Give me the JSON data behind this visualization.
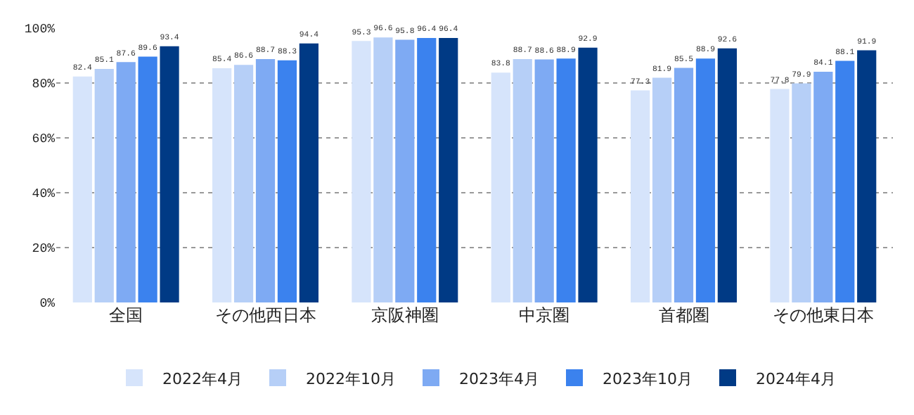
{
  "chart_data": {
    "type": "bar",
    "categories": [
      "全国",
      "その他西日本",
      "京阪神圏",
      "中京圏",
      "首都圏",
      "その他東日本"
    ],
    "series": [
      {
        "name": "2022年4月",
        "color": "#d6e4fb",
        "values": [
          82.4,
          85.4,
          95.3,
          83.8,
          77.3,
          77.8
        ]
      },
      {
        "name": "2022年10月",
        "color": "#b6cff7",
        "values": [
          85.1,
          86.6,
          96.6,
          88.7,
          81.9,
          79.9
        ]
      },
      {
        "name": "2023年4月",
        "color": "#7eaaf3",
        "values": [
          87.6,
          88.7,
          95.8,
          88.6,
          85.5,
          84.1
        ]
      },
      {
        "name": "2023年10月",
        "color": "#3b82ee",
        "values": [
          89.6,
          88.3,
          96.4,
          88.9,
          88.9,
          88.1
        ]
      },
      {
        "name": "2024年4月",
        "color": "#003a85",
        "values": [
          93.4,
          94.4,
          96.4,
          92.9,
          92.6,
          91.9
        ]
      }
    ],
    "ylim": [
      0,
      100
    ],
    "yticks": [
      {
        "value": 0,
        "label": "0%"
      },
      {
        "value": 20,
        "label": "20%"
      },
      {
        "value": 40,
        "label": "40%"
      },
      {
        "value": 60,
        "label": "60%"
      },
      {
        "value": 80,
        "label": "80%"
      },
      {
        "value": 100,
        "label": "100%"
      }
    ],
    "grid": "y",
    "legend": "bottom",
    "data_labels": true
  }
}
